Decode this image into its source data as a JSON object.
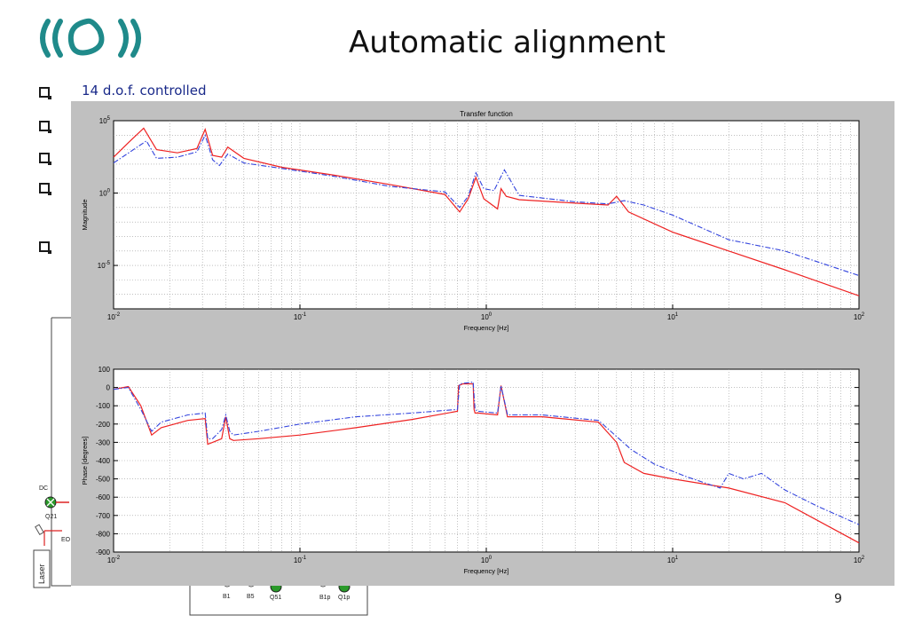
{
  "slide": {
    "title": "Automatic alignment",
    "page_number": "9",
    "bullets": [
      "14 d.o.f. controlled",
      "",
      "",
      "",
      ""
    ]
  },
  "colors": {
    "model_line": "#ee2222",
    "measured_line": "#3344dd",
    "bullet_text": "#1a2a8a",
    "logo": "#1f8a8a"
  },
  "icons": {
    "logo": "virgo-logo-icon"
  },
  "background_diagram": {
    "labels": [
      "DC",
      "Q21",
      "B1",
      "B5",
      "Q51",
      "B1p",
      "Q1p",
      "Laser",
      "EO"
    ]
  },
  "chart_data": [
    {
      "type": "line",
      "title": "Transfer function",
      "xlabel": "Frequency [Hz]",
      "ylabel": "Magnitude",
      "xscale": "log",
      "yscale": "log",
      "xlim": [
        0.01,
        100
      ],
      "ylim": [
        1e-08,
        100000.0
      ],
      "x_tick_labels": [
        "10-2",
        "10-1",
        "100",
        "101",
        "102"
      ],
      "y_tick_labels": [
        "10-5",
        "100",
        "105"
      ],
      "grid": true,
      "series": [
        {
          "color": "red",
          "style": "solid",
          "x": [
            0.01,
            0.012,
            0.0145,
            0.017,
            0.022,
            0.028,
            0.031,
            0.034,
            0.038,
            0.041,
            0.05,
            0.08,
            0.15,
            0.3,
            0.6,
            0.72,
            0.8,
            0.88,
            0.97,
            1.15,
            1.2,
            1.28,
            1.5,
            3,
            4.5,
            5,
            5.8,
            10,
            20,
            40,
            100
          ],
          "y": [
            300,
            3000,
            30000,
            1000,
            600,
            1200,
            25000,
            400,
            300,
            1500,
            250,
            60,
            18,
            4,
            0.8,
            0.05,
            0.4,
            12,
            0.4,
            0.08,
            2,
            0.6,
            0.35,
            0.2,
            0.15,
            0.6,
            0.05,
            0.002,
            0.0001,
            5e-06,
            8e-08
          ]
        },
        {
          "color": "blue",
          "style": "dash-dot",
          "x": [
            0.01,
            0.015,
            0.017,
            0.022,
            0.028,
            0.031,
            0.034,
            0.037,
            0.041,
            0.05,
            0.08,
            0.15,
            0.3,
            0.6,
            0.72,
            0.8,
            0.88,
            0.97,
            1.1,
            1.25,
            1.5,
            3,
            4.5,
            5.5,
            7,
            10,
            20,
            40,
            100
          ],
          "y": [
            120,
            4000,
            250,
            300,
            700,
            10000,
            200,
            80,
            500,
            120,
            50,
            15,
            3,
            1.2,
            0.1,
            0.6,
            25,
            2,
            1.5,
            40,
            0.7,
            0.25,
            0.18,
            0.3,
            0.15,
            0.03,
            0.0006,
            0.0001,
            2e-06
          ]
        }
      ]
    },
    {
      "type": "line",
      "title": "",
      "xlabel": "Frequency [Hz]",
      "ylabel": "Phase [degrees]",
      "xscale": "log",
      "xlim": [
        0.01,
        100
      ],
      "ylim": [
        -900,
        100
      ],
      "x_tick_labels": [
        "10-2",
        "10-1",
        "100",
        "101",
        "102"
      ],
      "y_tick_labels": [
        "100",
        "0",
        "-100",
        "-200",
        "-300",
        "-400",
        "-500",
        "-600",
        "-700",
        "-800",
        "-900"
      ],
      "grid": true,
      "series": [
        {
          "color": "red",
          "style": "solid",
          "x": [
            0.01,
            0.012,
            0.014,
            0.016,
            0.018,
            0.025,
            0.031,
            0.032,
            0.034,
            0.038,
            0.04,
            0.042,
            0.044,
            0.06,
            0.1,
            0.2,
            0.4,
            0.7,
            0.71,
            0.75,
            0.85,
            0.86,
            0.87,
            0.9,
            1.15,
            1.2,
            1.3,
            2,
            4,
            5,
            5.5,
            7,
            10,
            20,
            40,
            100
          ],
          "y": [
            -10,
            5,
            -100,
            -260,
            -220,
            -180,
            -170,
            -310,
            -300,
            -280,
            -160,
            -280,
            -290,
            -280,
            -260,
            -220,
            -175,
            -130,
            10,
            20,
            20,
            -120,
            -140,
            -140,
            -150,
            10,
            -160,
            -160,
            -190,
            -300,
            -410,
            -470,
            -500,
            -550,
            -630,
            -850
          ]
        },
        {
          "color": "blue",
          "style": "dash-dot",
          "x": [
            0.01,
            0.012,
            0.014,
            0.016,
            0.018,
            0.025,
            0.031,
            0.032,
            0.034,
            0.038,
            0.04,
            0.042,
            0.044,
            0.06,
            0.1,
            0.2,
            0.4,
            0.7,
            0.72,
            0.85,
            0.87,
            0.9,
            1.15,
            1.2,
            1.3,
            2,
            4,
            6,
            8,
            12,
            18,
            20,
            24,
            30,
            40,
            60,
            100
          ],
          "y": [
            -10,
            0,
            -120,
            -240,
            -190,
            -150,
            -140,
            -280,
            -280,
            -230,
            -150,
            -240,
            -260,
            -240,
            -200,
            -160,
            -140,
            -120,
            20,
            30,
            -120,
            -130,
            -140,
            10,
            -150,
            -150,
            -180,
            -340,
            -420,
            -490,
            -550,
            -470,
            -500,
            -470,
            -560,
            -650,
            -750
          ]
        }
      ]
    }
  ]
}
